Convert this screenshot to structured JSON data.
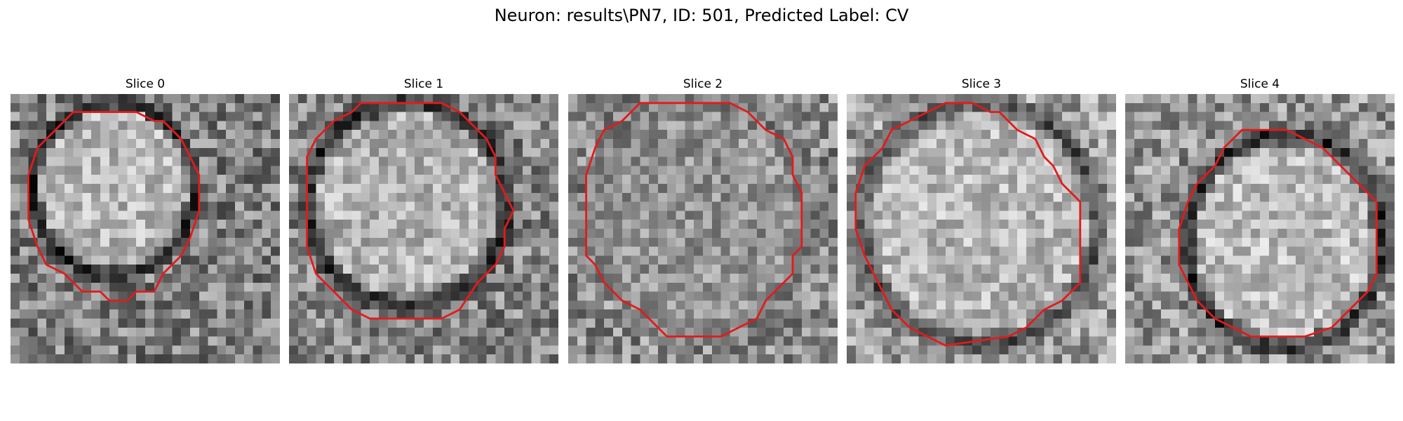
{
  "figure": {
    "title": "Neuron: results\\PN7, ID: 501, Predicted Label: CV",
    "contour_color": "#e31a1c"
  },
  "panels": [
    {
      "title": "Slice 0"
    },
    {
      "title": "Slice 1"
    },
    {
      "title": "Slice 2"
    },
    {
      "title": "Slice 3"
    },
    {
      "title": "Slice 4"
    }
  ]
}
